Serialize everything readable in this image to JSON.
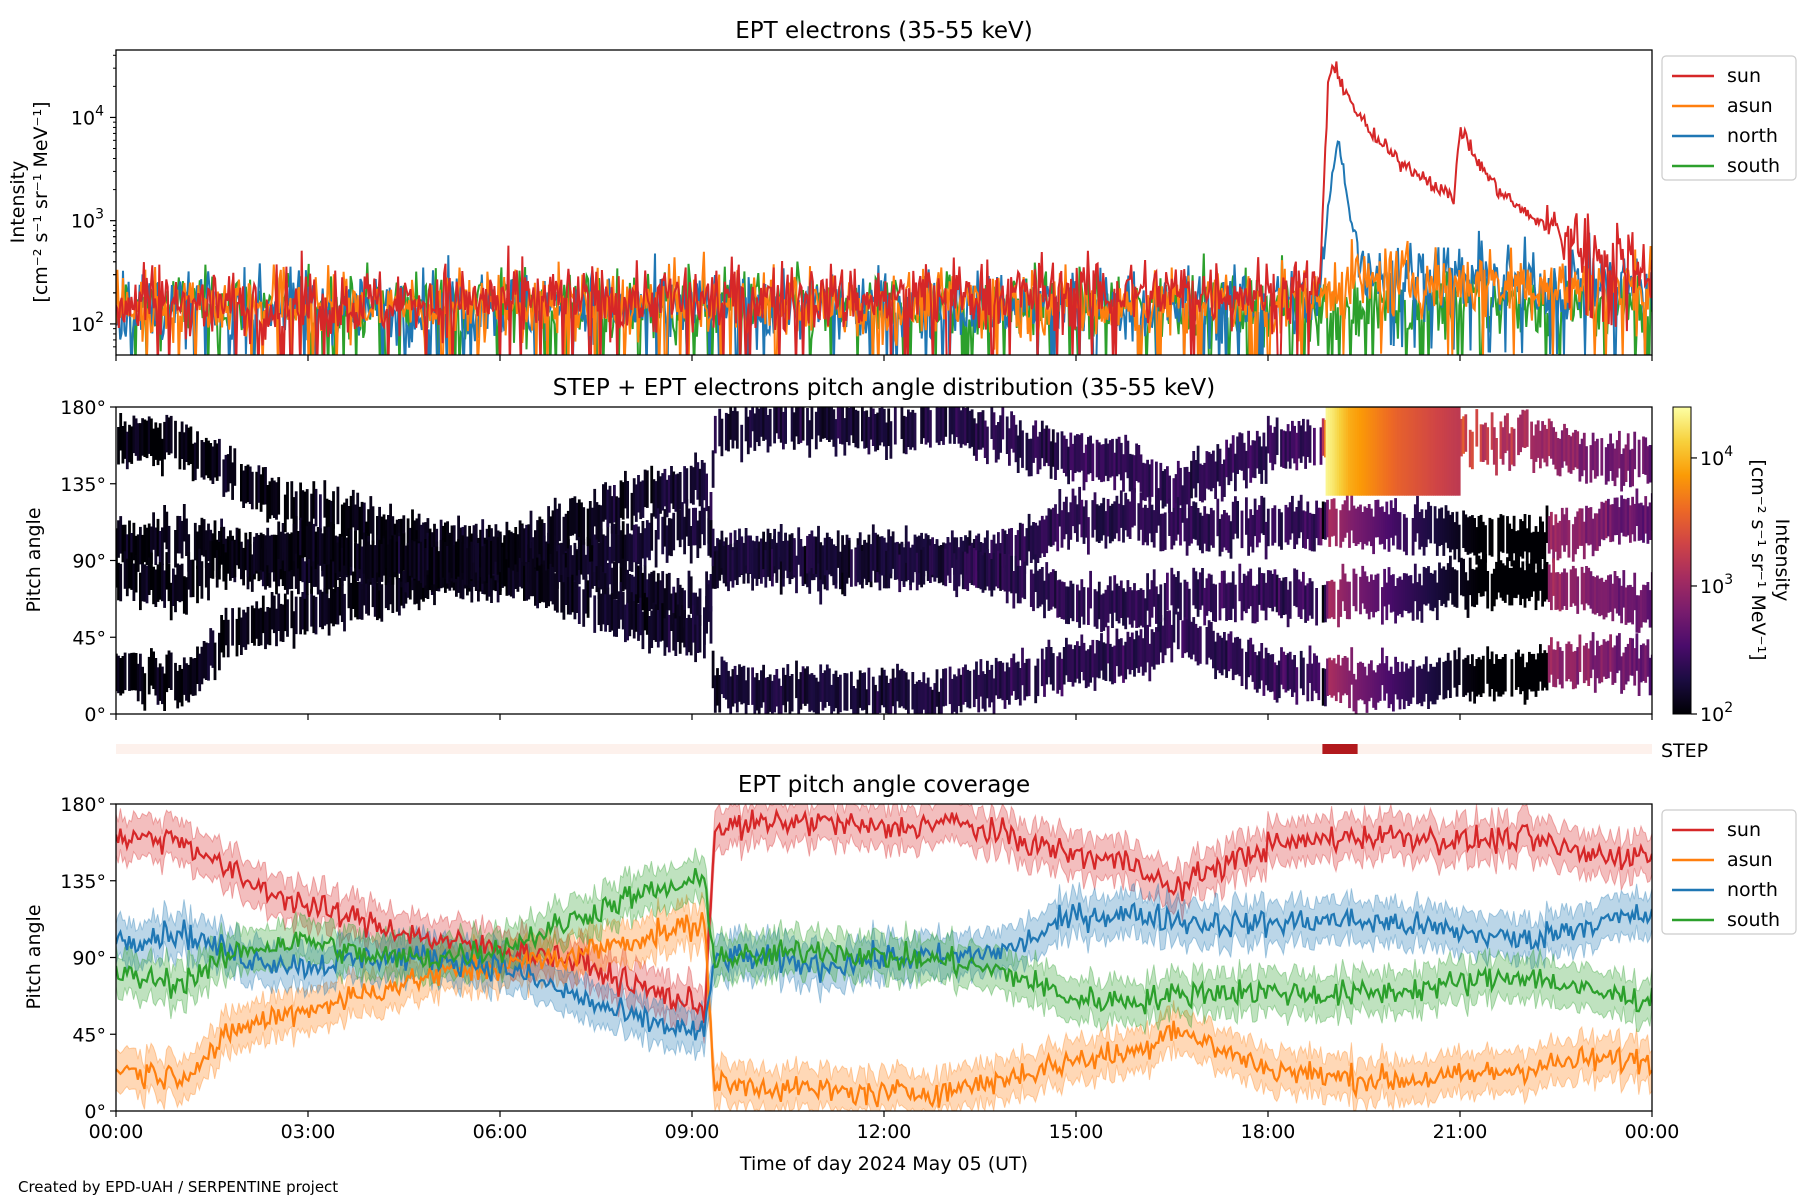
{
  "chart_data": [
    {
      "type": "line",
      "title": "EPT electrons (35-55 keV)",
      "ylabel_line1": "Intensity",
      "ylabel_line2": "[cm⁻² s⁻¹ sr⁻¹ MeV⁻¹]",
      "yscale": "log",
      "ylim": [
        50,
        45000
      ],
      "yticks": [
        {
          "value": 100,
          "base": "10",
          "exp": "2"
        },
        {
          "value": 1000,
          "base": "10",
          "exp": "3"
        },
        {
          "value": 10000,
          "base": "10",
          "exp": "4"
        }
      ],
      "xlim_hours": [
        0,
        24
      ],
      "legend_position": "outside-right",
      "series": [
        {
          "name": "sun",
          "color": "#d62728",
          "x_hours": [
            0,
            1,
            2,
            3,
            4,
            5,
            6,
            7,
            8,
            9,
            10,
            11,
            12,
            13,
            14,
            15,
            16,
            17,
            18,
            18.8,
            18.95,
            19.05,
            19.3,
            19.6,
            20,
            20.5,
            20.9,
            21.0,
            21.3,
            21.6,
            22,
            22.5,
            23,
            23.5,
            24
          ],
          "values": [
            160,
            170,
            150,
            165,
            160,
            170,
            175,
            170,
            180,
            175,
            185,
            180,
            175,
            190,
            200,
            210,
            200,
            210,
            200,
            240,
            25000,
            30000,
            14000,
            7000,
            4000,
            2500,
            1600,
            8000,
            3500,
            2000,
            1200,
            800,
            600,
            450,
            350
          ]
        },
        {
          "name": "asun",
          "color": "#ff7f0e",
          "x_hours": [
            0,
            2,
            4,
            6,
            8,
            10,
            12,
            14,
            16,
            18,
            18.8,
            19,
            20,
            21,
            22,
            23,
            24
          ],
          "values": [
            150,
            160,
            150,
            155,
            150,
            160,
            155,
            160,
            150,
            160,
            170,
            250,
            260,
            250,
            240,
            230,
            220
          ]
        },
        {
          "name": "north",
          "color": "#1f77b4",
          "x_hours": [
            0,
            2,
            4,
            6,
            8,
            10,
            12,
            14,
            16,
            18,
            18.8,
            18.95,
            19.1,
            19.4,
            20,
            21,
            22,
            23,
            24
          ],
          "values": [
            140,
            150,
            145,
            150,
            145,
            150,
            150,
            155,
            150,
            155,
            160,
            1500,
            6500,
            400,
            300,
            280,
            260,
            250,
            240
          ]
        },
        {
          "name": "south",
          "color": "#2ca02c",
          "x_hours": [
            0,
            2,
            4,
            6,
            8,
            10,
            12,
            14,
            16,
            18,
            20,
            22,
            24
          ],
          "values": [
            150,
            155,
            150,
            160,
            150,
            155,
            150,
            160,
            150,
            155,
            150,
            160,
            150
          ]
        }
      ]
    },
    {
      "type": "heatmap",
      "title": "STEP + EPT electrons pitch angle distribution (35-55 keV)",
      "ylabel": "Pitch angle",
      "ylim": [
        0,
        180
      ],
      "yticks": [
        "0°",
        "45°",
        "90°",
        "135°",
        "180°"
      ],
      "xlim_hours": [
        0,
        24
      ],
      "colorbar": {
        "label": "Intensity",
        "unit": "[cm⁻² s⁻¹ sr⁻¹ MeV⁻¹]",
        "scale": "log",
        "range": [
          100,
          25000
        ],
        "ticks": [
          {
            "value": 100,
            "base": "10",
            "exp": "2"
          },
          {
            "value": 1000,
            "base": "10",
            "exp": "3"
          },
          {
            "value": 10000,
            "base": "10",
            "exp": "4"
          }
        ],
        "colormap_stops": [
          "#000004",
          "#1b0c41",
          "#4a0c6b",
          "#781c6d",
          "#a52c60",
          "#cf4446",
          "#ed6925",
          "#fb9b06",
          "#f7d13d",
          "#fcffa4"
        ]
      },
      "time_intensity_hours": [
        0,
        6,
        9,
        12,
        14,
        15.5,
        17,
        18.8,
        18.95,
        19.3,
        20,
        21,
        22,
        24
      ],
      "time_intensity_values": [
        110,
        120,
        160,
        170,
        220,
        230,
        240,
        260,
        25000,
        14000,
        6000,
        2500,
        1200,
        450
      ],
      "step_hours": [
        18.9,
        19.0,
        19.25,
        20.0,
        21.0
      ],
      "step_values": [
        22000,
        18000,
        9000,
        3500,
        1600
      ]
    },
    {
      "type": "bar",
      "label": "STEP",
      "coverage_hours": [
        18.85,
        19.4
      ],
      "background_color": "#fdf1ec",
      "coverage_color": "#b2191d"
    },
    {
      "type": "area",
      "title": "EPT pitch angle coverage",
      "ylabel": "Pitch angle",
      "xlabel": "Time of day 2024 May 05 (UT)",
      "ylim": [
        0,
        180
      ],
      "yticks": [
        "0°",
        "45°",
        "90°",
        "135°",
        "180°"
      ],
      "xlim_hours": [
        0,
        24
      ],
      "xticks": [
        "00:00",
        "03:00",
        "06:00",
        "09:00",
        "12:00",
        "15:00",
        "18:00",
        "21:00",
        "00:00"
      ],
      "legend_position": "outside-right",
      "band_halfwidth_deg": 12,
      "series": [
        {
          "name": "sun",
          "color": "#d62728",
          "x_hours": [
            0,
            1,
            2,
            3,
            4,
            5,
            6,
            7,
            8,
            9.2,
            9.35,
            10,
            11,
            12,
            13,
            14,
            15,
            16,
            16.5,
            17,
            18,
            19,
            20,
            21,
            22,
            23,
            24
          ],
          "values": [
            160,
            160,
            135,
            120,
            110,
            100,
            95,
            90,
            75,
            60,
            165,
            168,
            170,
            165,
            170,
            160,
            150,
            145,
            128,
            140,
            155,
            160,
            162,
            158,
            160,
            150,
            150
          ]
        },
        {
          "name": "asun",
          "color": "#ff7f0e",
          "x_hours": [
            0,
            1,
            2,
            3,
            4,
            5,
            6,
            7,
            8,
            9.2,
            9.35,
            10,
            11,
            12,
            13,
            14,
            15,
            16,
            16.5,
            17,
            18,
            19,
            20,
            21,
            22,
            23,
            24
          ],
          "values": [
            25,
            20,
            50,
            60,
            70,
            80,
            85,
            90,
            100,
            110,
            15,
            15,
            12,
            10,
            12,
            20,
            30,
            35,
            50,
            40,
            25,
            20,
            18,
            20,
            25,
            30,
            30
          ]
        },
        {
          "name": "north",
          "color": "#1f77b4",
          "x_hours": [
            0,
            1,
            2,
            3,
            4,
            5,
            6,
            7,
            8,
            9.2,
            9.35,
            10,
            11,
            12,
            13,
            14,
            15,
            16,
            17,
            18,
            19,
            20,
            21,
            22,
            23,
            24
          ],
          "values": [
            100,
            105,
            90,
            85,
            90,
            90,
            85,
            70,
            55,
            45,
            90,
            90,
            85,
            90,
            90,
            95,
            115,
            115,
            110,
            110,
            112,
            110,
            105,
            100,
            110,
            115
          ]
        },
        {
          "name": "south",
          "color": "#2ca02c",
          "x_hours": [
            0,
            1,
            2,
            3,
            4,
            5,
            6,
            7,
            8,
            9.2,
            9.35,
            10,
            11,
            12,
            13,
            14,
            15,
            16,
            17,
            18,
            19,
            20,
            21,
            22,
            23,
            24
          ],
          "values": [
            80,
            75,
            95,
            100,
            90,
            90,
            95,
            110,
            125,
            135,
            90,
            90,
            95,
            90,
            88,
            80,
            65,
            65,
            70,
            70,
            68,
            70,
            75,
            80,
            70,
            65
          ]
        }
      ]
    }
  ],
  "credit": "Created by EPD-UAH / SERPENTINE project"
}
